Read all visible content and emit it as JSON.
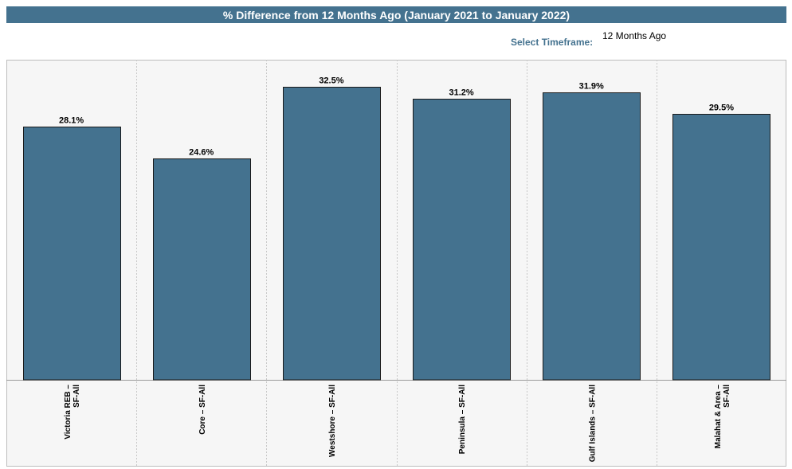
{
  "header": {
    "title": "% Difference from 12 Months Ago (January 2021 to January 2022)"
  },
  "timeframe": {
    "label": "Select Timeframe:",
    "value": "12 Months Ago"
  },
  "colors": {
    "bar": "#44728f",
    "title_bg": "#44728f",
    "plot_bg": "#f6f6f6"
  },
  "chart_data": {
    "type": "bar",
    "title": "% Difference from 12 Months Ago (January 2021 to January 2022)",
    "categories": [
      [
        "Victoria REB –",
        "SF-All"
      ],
      [
        "Core – SF-All"
      ],
      [
        "Westshore – SF-All"
      ],
      [
        "Peninsula – SF-All"
      ],
      [
        "Gulf Islands – SF-All"
      ],
      [
        "Malahat & Area –",
        "SF-All"
      ]
    ],
    "values": [
      28.1,
      24.6,
      32.5,
      31.2,
      31.9,
      29.5
    ],
    "value_labels": [
      "28.1%",
      "24.6%",
      "32.5%",
      "31.2%",
      "31.9%",
      "29.5%"
    ],
    "ylim": [
      0,
      35
    ],
    "grid": "vertical dashed separators",
    "xlabel": "",
    "ylabel": ""
  }
}
